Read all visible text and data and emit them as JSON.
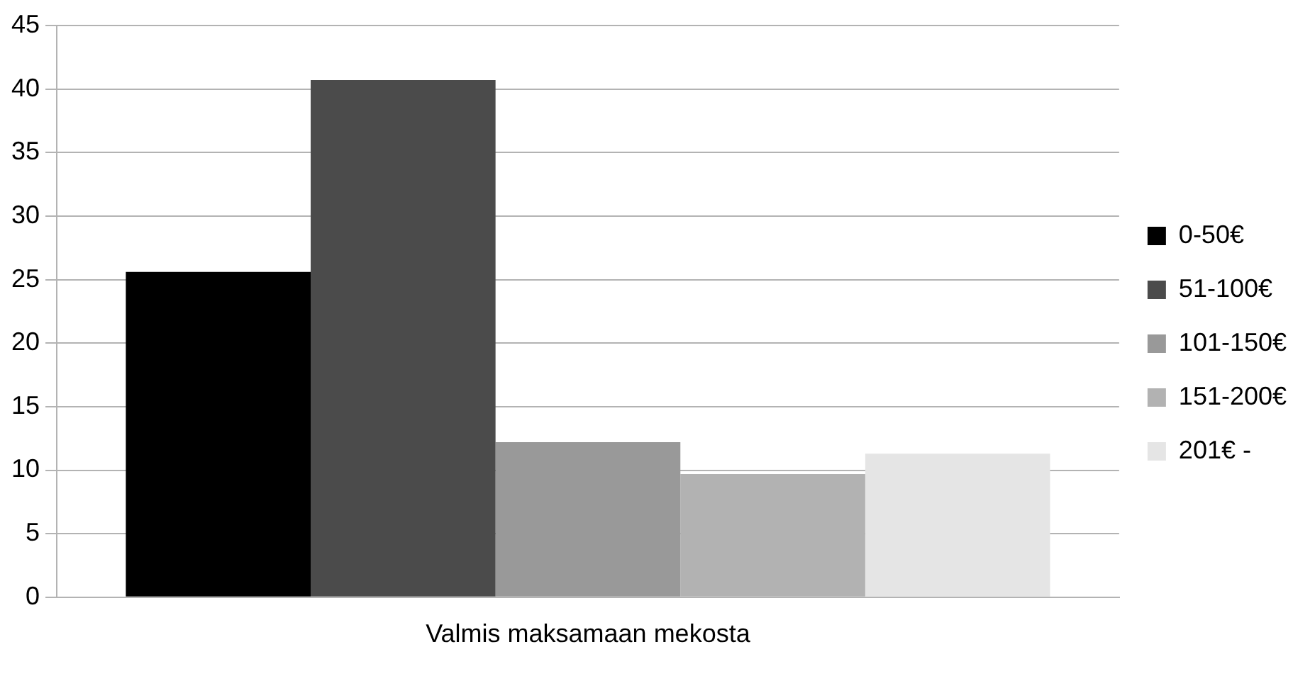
{
  "chart_data": {
    "type": "bar",
    "categories": [
      "Valmis maksamaan mekosta"
    ],
    "series": [
      {
        "name": "0-50€",
        "color": "#000000",
        "values": [
          25.6
        ]
      },
      {
        "name": "51-100€",
        "color": "#4b4b4b",
        "values": [
          40.7
        ]
      },
      {
        "name": "101-150€",
        "color": "#999999",
        "values": [
          12.2
        ]
      },
      {
        "name": "151-200€",
        "color": "#b2b2b2",
        "values": [
          9.7
        ]
      },
      {
        "name": "201€ -",
        "color": "#e5e5e5",
        "values": [
          11.3
        ]
      }
    ],
    "ylim": [
      0,
      45
    ],
    "yticks": [
      0,
      5,
      10,
      15,
      20,
      25,
      30,
      35,
      40,
      45
    ],
    "grid": "y",
    "legend": "right"
  }
}
